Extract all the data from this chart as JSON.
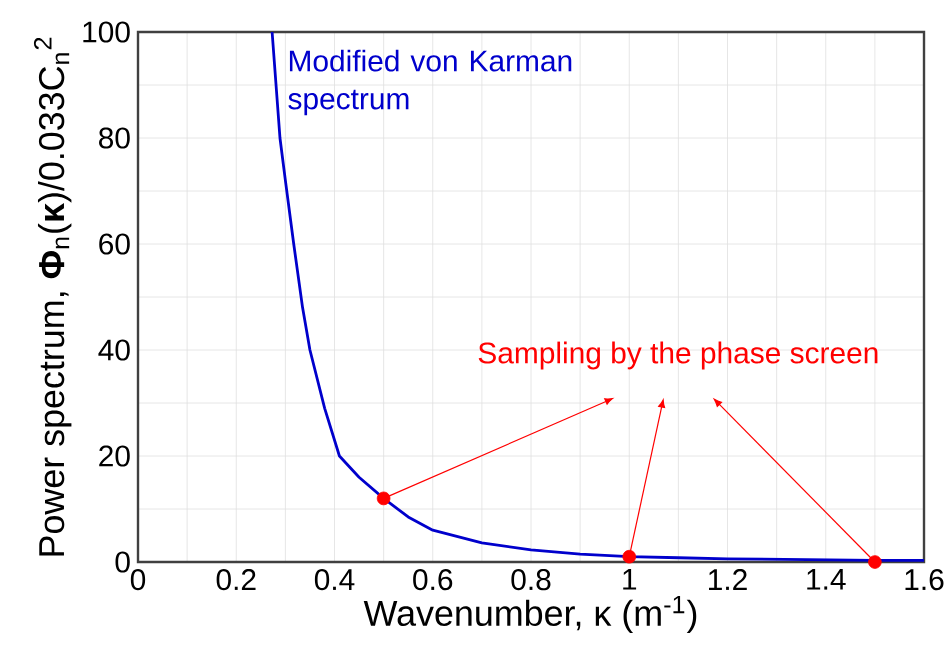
{
  "chart_data": {
    "type": "line",
    "xlabel": "Wavenumber, κ (m$^{-1}$)",
    "ylabel": "Power spectrum, **Φ**$_{n}$(**κ**)/0.033C$_{n}$$^{2}$",
    "series": [
      {
        "name": "Modified von Karman spectrum",
        "color": "#0000cc",
        "marker": "none",
        "x": [
          0.273,
          0.289,
          0.3,
          0.317,
          0.335,
          0.35,
          0.38,
          0.41,
          0.45,
          0.5,
          0.55,
          0.6,
          0.7,
          0.8,
          0.9,
          1.0,
          1.1,
          1.2,
          1.3,
          1.4,
          1.5,
          1.6
        ],
        "values": [
          100,
          80,
          72,
          60,
          48,
          40,
          29,
          20,
          16,
          12,
          8.5,
          6,
          3.6,
          2.3,
          1.5,
          1.0,
          0.8,
          0.6,
          0.5,
          0.4,
          0.3,
          0.3
        ]
      },
      {
        "type": "scatter",
        "color": "#ff0000",
        "marker": "circle",
        "x": [
          0.5,
          1.0,
          1.5
        ],
        "values": [
          12,
          1,
          0
        ]
      }
    ],
    "annotations": [
      "Sampling by the phase screen"
    ],
    "xlim": [
      0,
      1.6
    ],
    "ylim": [
      0,
      100
    ],
    "xticks": [
      0,
      0.2,
      0.4,
      0.6,
      0.8,
      1,
      1.2,
      1.4,
      1.6
    ],
    "yticks": [
      0,
      20,
      40,
      60,
      80,
      100
    ],
    "grid": true
  }
}
